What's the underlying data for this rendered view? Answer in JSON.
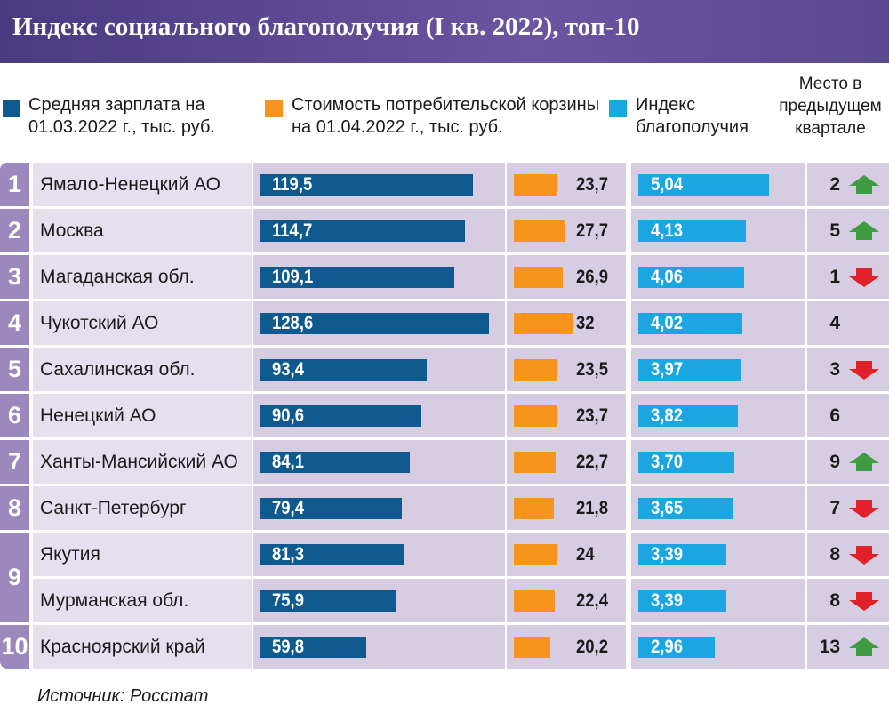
{
  "chart_data": {
    "type": "table",
    "title": "Индекс социального благополучия (I кв. 2022), топ-10",
    "legend": [
      {
        "label": "Средняя зарплата на 01.03.2022 г., тыс. руб.",
        "color": "#0e5a8e"
      },
      {
        "label": "Стоимость потребительской корзины на 01.04.2022 г., тыс. руб.",
        "color": "#f7941d"
      },
      {
        "label": "Индекс благополучия",
        "color": "#1ba6e2"
      }
    ],
    "place_header": "Место в предыдущем квартале",
    "rows": [
      {
        "rank": "1",
        "region": "Ямало-Ненецкий АО",
        "salary": "119,5",
        "basket": "23,7",
        "index": "5,04",
        "prev": "2",
        "trend": "up"
      },
      {
        "rank": "2",
        "region": "Москва",
        "salary": "114,7",
        "basket": "27,7",
        "index": "4,13",
        "prev": "5",
        "trend": "up"
      },
      {
        "rank": "3",
        "region": "Магаданская обл.",
        "salary": "109,1",
        "basket": "26,9",
        "index": "4,06",
        "prev": "1",
        "trend": "down"
      },
      {
        "rank": "4",
        "region": "Чукотский АО",
        "salary": "128,6",
        "basket": "32",
        "index": "4,02",
        "prev": "4",
        "trend": "none"
      },
      {
        "rank": "5",
        "region": "Сахалинская обл.",
        "salary": "93,4",
        "basket": "23,5",
        "index": "3,97",
        "prev": "3",
        "trend": "down"
      },
      {
        "rank": "6",
        "region": "Ненецкий АО",
        "salary": "90,6",
        "basket": "23,7",
        "index": "3,82",
        "prev": "6",
        "trend": "none"
      },
      {
        "rank": "7",
        "region": "Ханты-Мансийский АО",
        "salary": "84,1",
        "basket": "22,7",
        "index": "3,70",
        "prev": "9",
        "trend": "up"
      },
      {
        "rank": "8",
        "region": "Санкт-Петербург",
        "salary": "79,4",
        "basket": "21,8",
        "index": "3,65",
        "prev": "7",
        "trend": "down"
      },
      {
        "rank": "9",
        "region": "Якутия",
        "salary": "81,3",
        "basket": "24",
        "index": "3,39",
        "prev": "8",
        "trend": "down"
      },
      {
        "rank": "9",
        "region": "Мурманская обл.",
        "salary": "75,9",
        "basket": "22,4",
        "index": "3,39",
        "prev": "8",
        "trend": "down"
      },
      {
        "rank": "10",
        "region": "Красноярский край",
        "salary": "59,8",
        "basket": "20,2",
        "index": "2,96",
        "prev": "13",
        "trend": "up"
      }
    ],
    "colors": {
      "up": "#3f9b3f",
      "down": "#e0202a"
    }
  },
  "source": "Источник: Росстат"
}
